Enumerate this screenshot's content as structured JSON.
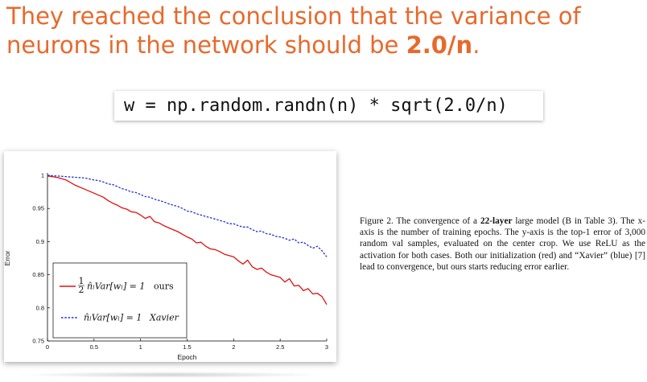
{
  "slide": {
    "title_part1": "They reached the conclusion that the variance of neurons in the network should be ",
    "title_bold": "2.0/n",
    "title_end": ".",
    "title_color": "#e8692b",
    "code": "w = np.random.randn(n) * sqrt(2.0/n)"
  },
  "figure": {
    "caption_prefix": "Figure 2. The convergence of a ",
    "caption_bold": "22-layer",
    "caption_rest": " large model (B in Table 3). The x-axis is the number of training epochs. The y-axis is the top-1 error of 3,000 random val samples, evaluated on the center crop. We use ReLU as the activation for both cases. Both our initialization (red) and “Xavier” (blue) [7] lead to convergence, but ours starts reducing error earlier."
  },
  "chart_data": {
    "type": "line",
    "xlabel": "Epoch",
    "ylabel": "Error",
    "xlim": [
      0,
      3
    ],
    "ylim": [
      0.75,
      1.0
    ],
    "x_ticks": [
      "0",
      "0.5",
      "1",
      "1.5",
      "2",
      "2.5",
      "3"
    ],
    "y_ticks": [
      "0.75",
      "0.8",
      "0.85",
      "0.9",
      "0.95",
      "1"
    ],
    "legend_position": "lower-left",
    "series": [
      {
        "name": "1/2 n̂_l Var[w_l] = 1  ours",
        "legend_math": "n̂ₗVar[wₗ] = 1",
        "legend_frac_top": "1",
        "legend_frac_bottom": "2",
        "legend_suffix": "ours",
        "color": "#e01010",
        "style": "solid",
        "x": [
          0,
          0.1,
          0.2,
          0.3,
          0.4,
          0.5,
          0.55,
          0.6,
          0.65,
          0.7,
          0.75,
          0.8,
          0.85,
          0.9,
          0.95,
          1.0,
          1.05,
          1.1,
          1.15,
          1.2,
          1.25,
          1.3,
          1.35,
          1.4,
          1.45,
          1.5,
          1.55,
          1.6,
          1.65,
          1.7,
          1.75,
          1.8,
          1.85,
          1.9,
          1.95,
          2.0,
          2.05,
          2.1,
          2.15,
          2.2,
          2.25,
          2.3,
          2.35,
          2.4,
          2.45,
          2.5,
          2.55,
          2.6,
          2.65,
          2.7,
          2.75,
          2.8,
          2.85,
          2.9,
          2.95,
          3.0
        ],
        "y": [
          0.999,
          0.997,
          0.993,
          0.985,
          0.979,
          0.973,
          0.97,
          0.967,
          0.962,
          0.958,
          0.955,
          0.951,
          0.949,
          0.945,
          0.944,
          0.94,
          0.935,
          0.938,
          0.93,
          0.928,
          0.924,
          0.921,
          0.918,
          0.915,
          0.911,
          0.907,
          0.904,
          0.898,
          0.899,
          0.893,
          0.889,
          0.888,
          0.885,
          0.881,
          0.879,
          0.877,
          0.871,
          0.866,
          0.872,
          0.862,
          0.858,
          0.86,
          0.854,
          0.85,
          0.848,
          0.846,
          0.839,
          0.844,
          0.833,
          0.834,
          0.826,
          0.829,
          0.821,
          0.822,
          0.817,
          0.805
        ]
      },
      {
        "name": "n̂_l Var[w_l] = 1  Xavier",
        "legend_math": "n̂ₗVar[wₗ] = 1",
        "legend_suffix": "Xavier",
        "color": "#1a2ee0",
        "style": "dashed",
        "x": [
          0,
          0.1,
          0.2,
          0.3,
          0.4,
          0.5,
          0.55,
          0.6,
          0.65,
          0.7,
          0.75,
          0.8,
          0.85,
          0.9,
          0.95,
          1.0,
          1.05,
          1.1,
          1.15,
          1.2,
          1.25,
          1.3,
          1.35,
          1.4,
          1.45,
          1.5,
          1.55,
          1.6,
          1.65,
          1.7,
          1.75,
          1.8,
          1.85,
          1.9,
          1.95,
          2.0,
          2.05,
          2.1,
          2.15,
          2.2,
          2.25,
          2.3,
          2.35,
          2.4,
          2.45,
          2.5,
          2.55,
          2.6,
          2.65,
          2.7,
          2.75,
          2.8,
          2.85,
          2.9,
          2.95,
          3.0
        ],
        "y": [
          1.0,
          0.999,
          0.998,
          0.997,
          0.996,
          0.993,
          0.992,
          0.99,
          0.987,
          0.986,
          0.983,
          0.98,
          0.978,
          0.975,
          0.974,
          0.971,
          0.968,
          0.967,
          0.964,
          0.962,
          0.96,
          0.957,
          0.955,
          0.953,
          0.95,
          0.946,
          0.945,
          0.942,
          0.94,
          0.938,
          0.936,
          0.934,
          0.932,
          0.93,
          0.927,
          0.927,
          0.924,
          0.922,
          0.922,
          0.918,
          0.915,
          0.916,
          0.912,
          0.911,
          0.908,
          0.907,
          0.905,
          0.902,
          0.904,
          0.898,
          0.899,
          0.894,
          0.89,
          0.893,
          0.886,
          0.877
        ]
      }
    ]
  }
}
